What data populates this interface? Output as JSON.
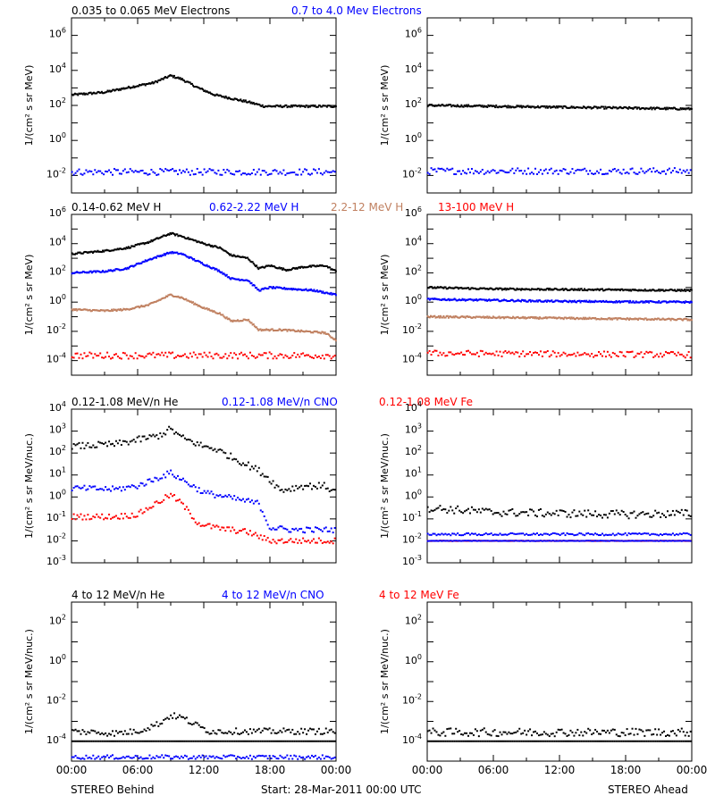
{
  "chart_data": {
    "type": "scatter",
    "x_range_hours": [
      0,
      24
    ],
    "x_tick_labels": [
      "00:00",
      "06:00",
      "12:00",
      "18:00",
      "00:00"
    ],
    "y_scale": "log",
    "colors": {
      "black": "#000000",
      "blue": "#0000ff",
      "brown": "#c08060",
      "red": "#ff0000"
    },
    "bottom_left_label": "STEREO Behind",
    "bottom_center_label": "Start: 28-Mar-2011 00:00 UTC",
    "bottom_right_label": "STEREO Ahead",
    "rows": [
      {
        "ylabel": "1/(cm² s sr MeV)",
        "ylim_exp": [
          -3,
          7
        ],
        "ticks_exp": [
          -2,
          0,
          2,
          4,
          6
        ],
        "legend": [
          {
            "text": "0.035 to 0.065 MeV Electrons",
            "color": "black"
          },
          {
            "text": "0.7 to 4.0 Mev Electrons",
            "color": "blue"
          }
        ],
        "behind": [
          {
            "color": "black",
            "style": "line",
            "points": [
              [
                0,
                2.6
              ],
              [
                3,
                2.75
              ],
              [
                5,
                3.0
              ],
              [
                7.5,
                3.3
              ],
              [
                9,
                3.7
              ],
              [
                10,
                3.5
              ],
              [
                11.5,
                3.0
              ],
              [
                13,
                2.6
              ],
              [
                14.5,
                2.4
              ],
              [
                16,
                2.2
              ],
              [
                17.5,
                1.95
              ],
              [
                19,
                1.95
              ],
              [
                21,
                1.95
              ],
              [
                24,
                1.95
              ]
            ]
          },
          {
            "color": "blue",
            "style": "scatter",
            "points": [
              [
                0,
                -1.8
              ],
              [
                24,
                -1.8
              ]
            ],
            "scatter": 0.18
          }
        ],
        "ahead": [
          {
            "color": "black",
            "style": "line",
            "points": [
              [
                0,
                2.0
              ],
              [
                12,
                1.9
              ],
              [
                24,
                1.8
              ]
            ]
          },
          {
            "color": "blue",
            "style": "scatter",
            "points": [
              [
                0,
                -1.75
              ],
              [
                24,
                -1.75
              ]
            ],
            "scatter": 0.18
          }
        ]
      },
      {
        "ylabel": "1/(cm² s sr MeV)",
        "ylim_exp": [
          -5,
          6
        ],
        "ticks_exp": [
          -4,
          -2,
          0,
          2,
          4,
          6
        ],
        "legend": [
          {
            "text": "0.14-0.62 MeV H",
            "color": "black"
          },
          {
            "text": "0.62-2.22 MeV H",
            "color": "blue"
          },
          {
            "text": "2.2-12 MeV H",
            "color": "brown"
          },
          {
            "text": "13-100 MeV H",
            "color": "red"
          }
        ],
        "behind": [
          {
            "color": "black",
            "style": "line",
            "points": [
              [
                0,
                3.3
              ],
              [
                3,
                3.5
              ],
              [
                5,
                3.7
              ],
              [
                7,
                4.1
              ],
              [
                9,
                4.7
              ],
              [
                10,
                4.5
              ],
              [
                12,
                4.0
              ],
              [
                13.5,
                3.7
              ],
              [
                14.5,
                3.2
              ],
              [
                16,
                3.0
              ],
              [
                17,
                2.3
              ],
              [
                18,
                2.5
              ],
              [
                19.5,
                2.2
              ],
              [
                21,
                2.4
              ],
              [
                23,
                2.5
              ],
              [
                24,
                2.1
              ]
            ]
          },
          {
            "color": "blue",
            "style": "line",
            "points": [
              [
                0,
                2.0
              ],
              [
                3,
                2.1
              ],
              [
                5,
                2.3
              ],
              [
                7,
                2.9
              ],
              [
                9,
                3.4
              ],
              [
                10,
                3.3
              ],
              [
                12,
                2.6
              ],
              [
                13.5,
                2.1
              ],
              [
                14.5,
                1.6
              ],
              [
                16,
                1.5
              ],
              [
                17,
                0.8
              ],
              [
                18,
                1.0
              ],
              [
                20,
                0.9
              ],
              [
                22,
                0.8
              ],
              [
                24,
                0.5
              ]
            ]
          },
          {
            "color": "brown",
            "style": "line",
            "points": [
              [
                0,
                -0.5
              ],
              [
                3,
                -0.6
              ],
              [
                5,
                -0.5
              ],
              [
                7,
                -0.2
              ],
              [
                9,
                0.5
              ],
              [
                10,
                0.3
              ],
              [
                12,
                -0.4
              ],
              [
                13.5,
                -0.8
              ],
              [
                14.5,
                -1.3
              ],
              [
                16,
                -1.2
              ],
              [
                17,
                -1.9
              ],
              [
                19,
                -1.9
              ],
              [
                21,
                -2.0
              ],
              [
                23,
                -2.1
              ],
              [
                24,
                -2.6
              ]
            ]
          },
          {
            "color": "red",
            "style": "scatter",
            "points": [
              [
                0,
                -3.65
              ],
              [
                24,
                -3.65
              ]
            ],
            "scatter": 0.22
          }
        ],
        "ahead": [
          {
            "color": "black",
            "style": "line",
            "points": [
              [
                0,
                1.0
              ],
              [
                6,
                0.9
              ],
              [
                24,
                0.8
              ]
            ]
          },
          {
            "color": "blue",
            "style": "line",
            "points": [
              [
                0,
                0.2
              ],
              [
                12,
                0.05
              ],
              [
                24,
                0.0
              ]
            ]
          },
          {
            "color": "brown",
            "style": "line",
            "points": [
              [
                0,
                -1.0
              ],
              [
                12,
                -1.1
              ],
              [
                24,
                -1.2
              ]
            ]
          },
          {
            "color": "red",
            "style": "scatter",
            "points": [
              [
                0,
                -3.5
              ],
              [
                24,
                -3.6
              ]
            ],
            "scatter": 0.2
          }
        ]
      },
      {
        "ylabel": "1/(cm² s sr MeV/nuc.)",
        "ylim_exp": [
          -3,
          4
        ],
        "ticks_exp": [
          -3,
          -2,
          -1,
          0,
          1,
          2,
          3,
          4
        ],
        "legend": [
          {
            "text": "0.12-1.08 MeV/n He",
            "color": "black"
          },
          {
            "text": "0.12-1.08 MeV/n CNO",
            "color": "blue"
          },
          {
            "text": "0.12-1.08 MeV Fe",
            "color": "red"
          }
        ],
        "behind": [
          {
            "color": "black",
            "style": "scatter",
            "points": [
              [
                0,
                2.3
              ],
              [
                4,
                2.4
              ],
              [
                6,
                2.6
              ],
              [
                8,
                2.8
              ],
              [
                9,
                3.1
              ],
              [
                10,
                2.7
              ],
              [
                12,
                2.3
              ],
              [
                13,
                2.2
              ],
              [
                15,
                1.7
              ],
              [
                17,
                1.2
              ],
              [
                18,
                0.8
              ],
              [
                19,
                0.3
              ],
              [
                21,
                0.5
              ],
              [
                23,
                0.5
              ],
              [
                24,
                0.2
              ]
            ],
            "scatter": 0.15
          },
          {
            "color": "blue",
            "style": "scatter",
            "points": [
              [
                0,
                0.4
              ],
              [
                4,
                0.35
              ],
              [
                6,
                0.5
              ],
              [
                8,
                0.9
              ],
              [
                9,
                1.1
              ],
              [
                10,
                0.8
              ],
              [
                12,
                0.2
              ],
              [
                13,
                0.1
              ],
              [
                15,
                -0.1
              ],
              [
                17,
                -0.3
              ],
              [
                18,
                -1.4
              ],
              [
                20,
                -1.5
              ],
              [
                24,
                -1.5
              ]
            ],
            "scatter": 0.13
          },
          {
            "color": "red",
            "style": "scatter",
            "points": [
              [
                0,
                -0.9
              ],
              [
                4,
                -0.9
              ],
              [
                6,
                -0.8
              ],
              [
                8,
                -0.2
              ],
              [
                9,
                0.1
              ],
              [
                10,
                -0.3
              ],
              [
                11.5,
                -1.2
              ],
              [
                13,
                -1.4
              ],
              [
                16,
                -1.6
              ],
              [
                18,
                -2.0
              ],
              [
                24,
                -2.0
              ]
            ],
            "scatter": 0.13
          }
        ],
        "ahead": [
          {
            "color": "black",
            "style": "scatter",
            "points": [
              [
                0,
                -0.5
              ],
              [
                6,
                -0.7
              ],
              [
                12,
                -0.75
              ],
              [
                18,
                -0.8
              ],
              [
                24,
                -0.75
              ]
            ],
            "scatter": 0.18
          },
          {
            "color": "blue",
            "style": "scatter",
            "points": [
              [
                0,
                -1.7
              ],
              [
                24,
                -1.7
              ]
            ],
            "scatter": 0.05
          },
          {
            "color": "red",
            "style": "scatter",
            "points": [
              [
                0,
                -2.0
              ],
              [
                24,
                -2.0
              ]
            ],
            "scatter": 0.01
          },
          {
            "color": "blue",
            "style": "scatter",
            "points": [
              [
                0,
                -2.0
              ],
              [
                24,
                -2.0
              ]
            ],
            "scatter": 0.01
          }
        ]
      },
      {
        "ylabel": "1/(cm² s sr MeV/nuc.)",
        "ylim_exp": [
          -5,
          3
        ],
        "ticks_exp": [
          -4,
          -2,
          0,
          2
        ],
        "legend": [
          {
            "text": "4 to 12 MeV/n He",
            "color": "black"
          },
          {
            "text": "4 to 12 MeV/n CNO",
            "color": "blue"
          },
          {
            "text": "4 to 12 MeV Fe",
            "color": "red"
          }
        ],
        "behind": [
          {
            "color": "black",
            "style": "scatter",
            "points": [
              [
                0,
                -3.5
              ],
              [
                4,
                -3.6
              ],
              [
                6,
                -3.5
              ],
              [
                8,
                -3.1
              ],
              [
                9,
                -2.7
              ],
              [
                10,
                -2.8
              ],
              [
                11,
                -3.1
              ],
              [
                12.5,
                -3.5
              ]
            ],
            "scatter": 0.15
          },
          {
            "color": "black",
            "style": "scatter",
            "points": [
              [
                0,
                -4.0
              ],
              [
                24,
                -4.0
              ]
            ],
            "scatter": 0.0
          },
          {
            "color": "blue",
            "style": "scatter",
            "points": [
              [
                8,
                -4.8
              ],
              [
                10,
                -4.8
              ]
            ],
            "scatter": 0.1
          }
        ],
        "ahead": [
          {
            "color": "black",
            "style": "scatter",
            "points": [
              [
                0,
                -3.55
              ],
              [
                24,
                -3.55
              ]
            ],
            "scatter": 0.2
          },
          {
            "color": "black",
            "style": "scatter",
            "points": [
              [
                0,
                -4.0
              ],
              [
                24,
                -4.0
              ]
            ],
            "scatter": 0.0
          }
        ]
      }
    ]
  }
}
